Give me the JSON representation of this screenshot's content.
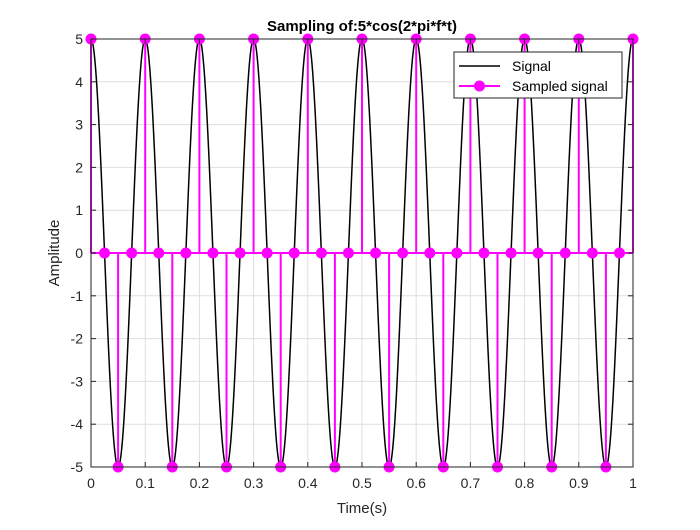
{
  "chart_data": {
    "type": "line",
    "title": "Sampling of:5*cos(2*pi*f*t)",
    "xlabel": "Time(s)",
    "ylabel": "Amplitude",
    "xlim": [
      0,
      1
    ],
    "ylim": [
      -5,
      5
    ],
    "xticks": [
      "0",
      "0.1",
      "0.2",
      "0.3",
      "0.4",
      "0.5",
      "0.6",
      "0.7",
      "0.8",
      "0.9",
      "1"
    ],
    "yticks": [
      "-5",
      "-4",
      "-3",
      "-2",
      "-1",
      "0",
      "1",
      "2",
      "3",
      "4",
      "5"
    ],
    "grid": true,
    "legend_position": "top-right",
    "signal": {
      "name": "Signal",
      "color": "#000000",
      "amplitude": 5,
      "frequency_hz": 10
    },
    "sampled": {
      "name": "Sampled signal",
      "color": "#ff00ff",
      "style": "stem",
      "t": [
        0,
        0.025,
        0.05,
        0.075,
        0.1,
        0.125,
        0.15,
        0.175,
        0.2,
        0.225,
        0.25,
        0.275,
        0.3,
        0.325,
        0.35,
        0.375,
        0.4,
        0.425,
        0.45,
        0.475,
        0.5,
        0.525,
        0.55,
        0.575,
        0.6,
        0.625,
        0.65,
        0.675,
        0.7,
        0.725,
        0.75,
        0.775,
        0.8,
        0.825,
        0.85,
        0.875,
        0.9,
        0.925,
        0.95,
        0.975,
        1
      ],
      "values": [
        5,
        0,
        -5,
        0,
        5,
        0,
        -5,
        0,
        5,
        0,
        -5,
        0,
        5,
        0,
        -5,
        0,
        5,
        0,
        -5,
        0,
        5,
        0,
        -5,
        0,
        5,
        0,
        -5,
        0,
        5,
        0,
        -5,
        0,
        5,
        0,
        -5,
        0,
        5,
        0,
        -5,
        0,
        5
      ]
    }
  }
}
